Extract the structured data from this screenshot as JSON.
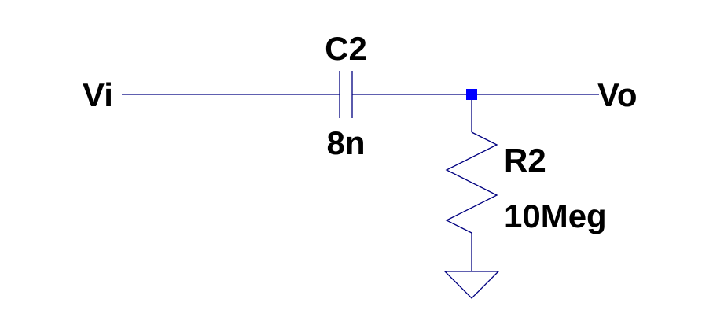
{
  "schematic": {
    "input_net": "Vi",
    "output_net": "Vo",
    "capacitor": {
      "name": "C2",
      "value": "8n"
    },
    "resistor": {
      "name": "R2",
      "value": "10Meg"
    },
    "colors": {
      "wire": "#000080",
      "junction": "#0000ff",
      "ground": "#000080",
      "text": "#000000",
      "background": "#ffffff"
    }
  }
}
